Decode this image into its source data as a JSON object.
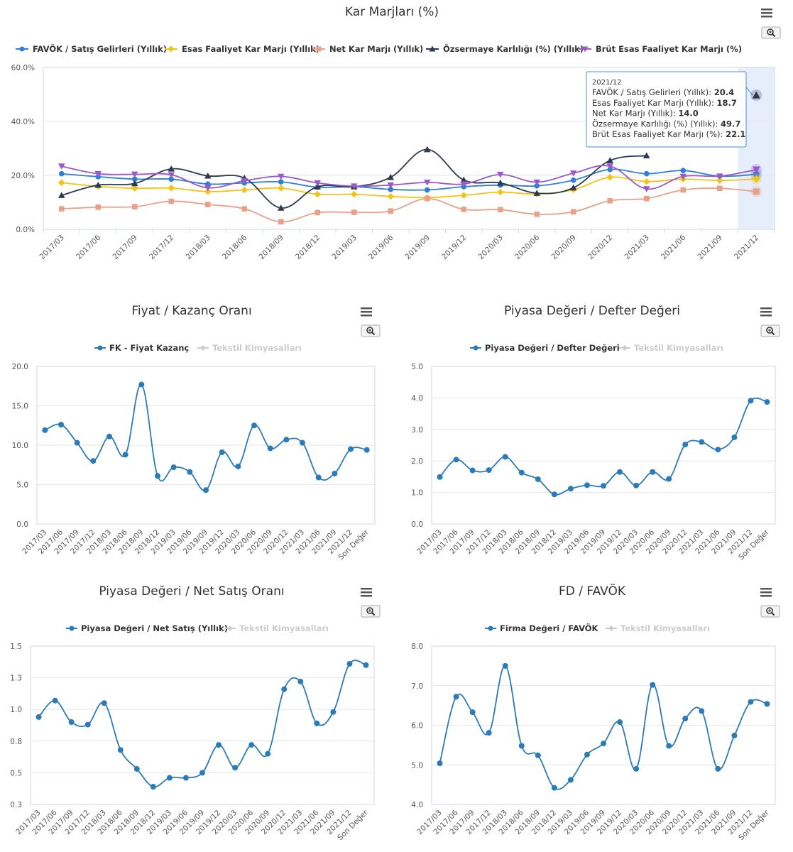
{
  "ui": {
    "menu_icon": "hamburger-menu-icon",
    "zoom_icon": "zoom-magnifier-icon"
  },
  "chart_data": [
    {
      "type": "line",
      "title": "Kar Marjları (%)",
      "categories": [
        "2017/03",
        "2017/06",
        "2017/09",
        "2017/12",
        "2018/03",
        "2018/06",
        "2018/09",
        "2018/12",
        "2019/03",
        "2019/06",
        "2019/09",
        "2019/12",
        "2020/03",
        "2020/06",
        "2020/09",
        "2020/12",
        "2021/03",
        "2021/06",
        "2021/09",
        "2021/12"
      ],
      "yticks": [
        0,
        20,
        40,
        60
      ],
      "ytick_labels": [
        "0.0%",
        "20.0%",
        "40.0%",
        "60.0%"
      ],
      "ylim": [
        0,
        60
      ],
      "highlight_index": 19,
      "series": [
        {
          "name": "FAVÖK / Satış Gelirleri (Yıllık)",
          "color": "#2f7ed8",
          "marker": "circle",
          "values": [
            20.6,
            19.5,
            18.6,
            18.6,
            16.8,
            17.2,
            17.6,
            15.6,
            15.8,
            14.8,
            14.6,
            15.8,
            16.4,
            16.1,
            18.2,
            22.2,
            20.6,
            21.8,
            19.7,
            20.4
          ]
        },
        {
          "name": "Esas Faaliyet Kar Marjı (Yıllık)",
          "color": "#f2c416",
          "marker": "diamond",
          "values": [
            17.3,
            15.9,
            15.2,
            15.3,
            14.0,
            14.6,
            15.3,
            13.0,
            13.0,
            12.2,
            11.8,
            12.6,
            13.8,
            13.1,
            14.7,
            19.3,
            17.7,
            18.6,
            18.1,
            18.7
          ]
        },
        {
          "name": "Net Kar Marjı (Yıllık)",
          "color": "#e8a08a",
          "marker": "square",
          "values": [
            7.6,
            8.2,
            8.4,
            10.4,
            9.2,
            7.6,
            2.8,
            6.2,
            6.3,
            6.8,
            11.4,
            7.4,
            7.3,
            5.6,
            6.5,
            10.6,
            11.4,
            14.6,
            15.2,
            14.0
          ]
        },
        {
          "name": "Özsermaye Karlılığı (%) (Yıllık)",
          "color": "#2b3a4f",
          "marker": "triangle",
          "values": [
            12.6,
            16.4,
            17.0,
            22.4,
            19.8,
            19.0,
            7.9,
            15.8,
            15.8,
            19.3,
            29.6,
            18.3,
            17.2,
            13.4,
            15.4,
            25.5,
            27.3,
            null,
            null,
            49.7
          ]
        },
        {
          "name": "Brüt Esas Faaliyet Kar Marjı (%)",
          "color": "#9b59c8",
          "marker": "triangle-down",
          "values": [
            23.4,
            20.6,
            20.4,
            20.2,
            15.4,
            18.0,
            19.6,
            17.2,
            16.0,
            16.4,
            17.4,
            16.8,
            20.3,
            17.5,
            20.8,
            23.4,
            15.0,
            19.6,
            19.7,
            22.1
          ]
        }
      ],
      "tooltip": {
        "header": "2021/12",
        "rows": [
          {
            "label": "FAVÖK / Satış Gelirleri (Yıllık): ",
            "value": "20.4"
          },
          {
            "label": "Esas Faaliyet Kar Marjı (Yıllık): ",
            "value": "18.7"
          },
          {
            "label": "Net Kar Marjı (Yıllık): ",
            "value": "14.0"
          },
          {
            "label": "Özsermaye Karlılığı (%) (Yıllık): ",
            "value": "49.7"
          },
          {
            "label": "Brüt Esas Faaliyet Kar Marjı (%): ",
            "value": "22.1"
          }
        ]
      }
    },
    {
      "type": "line",
      "title": "Fiyat / Kazanç Oranı",
      "legend": [
        "FK - Fiyat Kazanç",
        "Tekstil Kimyasalları"
      ],
      "categories": [
        "2017/03",
        "2017/06",
        "2017/09",
        "2017/12",
        "2018/03",
        "2018/06",
        "2018/09",
        "2018/12",
        "2019/03",
        "2019/06",
        "2019/09",
        "2019/12",
        "2020/03",
        "2020/06",
        "2020/09",
        "2020/12",
        "2021/03",
        "2021/06",
        "2021/09",
        "2021/12",
        "Son Değer"
      ],
      "yticks": [
        0,
        5,
        10,
        15,
        20
      ],
      "ytick_labels": [
        "0.0",
        "5.0",
        "10.0",
        "15.0",
        "20.0"
      ],
      "ylim": [
        0,
        20
      ],
      "color": "#2b7bb9",
      "values": [
        11.9,
        12.6,
        10.3,
        8.0,
        11.1,
        8.8,
        17.7,
        6.1,
        7.2,
        6.6,
        4.3,
        9.1,
        7.3,
        12.5,
        9.6,
        10.7,
        10.3,
        5.9,
        6.4,
        9.5,
        9.4
      ]
    },
    {
      "type": "line",
      "title": "Piyasa Değeri / Defter Değeri",
      "legend": [
        "Piyasa Değeri / Defter Değeri",
        "Tekstil Kimyasalları"
      ],
      "categories": [
        "2017/03",
        "2017/06",
        "2017/09",
        "2017/12",
        "2018/03",
        "2018/06",
        "2018/09",
        "2018/12",
        "2019/03",
        "2019/06",
        "2019/09",
        "2019/12",
        "2020/03",
        "2020/06",
        "2020/09",
        "2020/12",
        "2021/03",
        "2021/06",
        "2021/09",
        "2021/12",
        "Son Değer"
      ],
      "yticks": [
        0,
        1,
        2,
        3,
        4,
        5
      ],
      "ytick_labels": [
        "0.0",
        "1.0",
        "2.0",
        "3.0",
        "4.0",
        "5.0"
      ],
      "ylim": [
        0,
        5
      ],
      "color": "#2b7bb9",
      "values": [
        1.49,
        2.04,
        1.7,
        1.71,
        2.13,
        1.63,
        1.42,
        0.94,
        1.12,
        1.23,
        1.21,
        1.65,
        1.22,
        1.65,
        1.43,
        2.52,
        2.6,
        2.36,
        2.75,
        3.91,
        3.87
      ]
    },
    {
      "type": "line",
      "title": "Piyasa Değeri / Net Satış Oranı",
      "legend": [
        "Piyasa Değeri / Net Satış (Yıllık)",
        "Tekstil Kimyasalları"
      ],
      "categories": [
        "2017/03",
        "2017/06",
        "2017/09",
        "2017/12",
        "2018/03",
        "2018/06",
        "2018/09",
        "2018/12",
        "2019/03",
        "2019/06",
        "2019/09",
        "2019/12",
        "2020/03",
        "2020/06",
        "2020/09",
        "2020/12",
        "2021/03",
        "2021/06",
        "2021/09",
        "2021/12",
        "Son Değer"
      ],
      "yticks": [
        0.25,
        0.5,
        0.75,
        1.0,
        1.25,
        1.5
      ],
      "ytick_labels": [
        "0.3",
        "0.5",
        "0.8",
        "1.0",
        "1.3",
        "1.5"
      ],
      "ylim": [
        0.25,
        1.5
      ],
      "color": "#2b7bb9",
      "values": [
        0.94,
        1.07,
        0.9,
        0.88,
        1.05,
        0.68,
        0.53,
        0.39,
        0.46,
        0.46,
        0.5,
        0.72,
        0.54,
        0.72,
        0.65,
        1.16,
        1.22,
        0.89,
        0.98,
        1.36,
        1.35
      ]
    },
    {
      "type": "line",
      "title": "FD / FAVÖK",
      "legend": [
        "Firma Değeri / FAVÖK",
        "Tekstil Kimyasalları"
      ],
      "categories": [
        "2017/03",
        "2017/06",
        "2017/09",
        "2017/12",
        "2018/03",
        "2018/06",
        "2018/09",
        "2018/12",
        "2019/03",
        "2019/06",
        "2019/09",
        "2019/12",
        "2020/03",
        "2020/06",
        "2020/09",
        "2020/12",
        "2021/03",
        "2021/06",
        "2021/09",
        "2021/12",
        "Son Değer"
      ],
      "yticks": [
        4,
        5,
        6,
        7,
        8
      ],
      "ytick_labels": [
        "4.0",
        "5.0",
        "6.0",
        "7.0",
        "8.0"
      ],
      "ylim": [
        4,
        8
      ],
      "color": "#2b7bb9",
      "values": [
        5.04,
        6.72,
        6.33,
        5.81,
        7.5,
        5.48,
        5.24,
        4.42,
        4.62,
        5.26,
        5.54,
        6.08,
        4.9,
        7.02,
        5.48,
        6.17,
        6.36,
        4.9,
        5.74,
        6.59,
        6.54
      ]
    }
  ]
}
